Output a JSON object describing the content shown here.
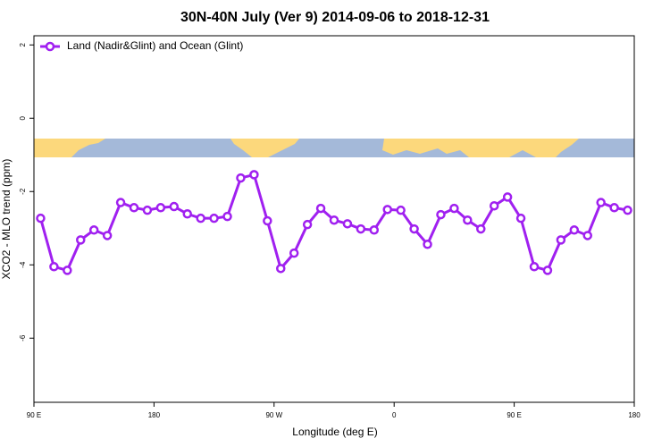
{
  "chart_data": {
    "type": "line",
    "title": "30N-40N July (Ver 9)   2014-09-06 to 2018-12-31",
    "x_label": "Longitude (deg E)",
    "y_label": "XCO2 - MLO trend (ppm)",
    "x": [
      95,
      105,
      115,
      125,
      135,
      145,
      155,
      165,
      175,
      185,
      195,
      205,
      215,
      225,
      235,
      245,
      255,
      265,
      275,
      285,
      295,
      305,
      315,
      325,
      335,
      345,
      355,
      365,
      375,
      385,
      395,
      405,
      415,
      425,
      435,
      445,
      455,
      465,
      475,
      485,
      495,
      505,
      515,
      525,
      535
    ],
    "series": [
      {
        "name": "Land (Nadir&Glint) and Ocean (Glint)",
        "color": "#a020f0",
        "values": [
          -2.73,
          -4.05,
          -4.15,
          -3.32,
          -3.05,
          -3.2,
          -2.3,
          -2.44,
          -2.51,
          -2.44,
          -2.41,
          -2.61,
          -2.73,
          -2.73,
          -2.68,
          -1.63,
          -1.54,
          -2.8,
          -4.1,
          -3.68,
          -2.9,
          -2.46,
          -2.78,
          -2.88,
          -3.02,
          -3.05,
          -2.49,
          -2.51,
          -3.02,
          -3.44,
          -2.63,
          -2.46,
          -2.78,
          -3.02,
          -2.39,
          -2.15,
          -2.73,
          -4.05,
          -4.15,
          -3.32,
          -3.05,
          -3.2,
          -2.3,
          -2.44,
          -2.51
        ]
      }
    ],
    "xlim": [
      90,
      540
    ],
    "xticks": [
      {
        "value": 90,
        "label": "90 E"
      },
      180,
      {
        "value": 270,
        "label": "90 W"
      },
      {
        "value": 360,
        "label": "0"
      },
      {
        "value": 450,
        "label": "90 E"
      },
      {
        "value": 540,
        "label": "180"
      }
    ],
    "ylim": [
      -7.75,
      2.25
    ],
    "yticks": [
      -6,
      -4,
      -2,
      0,
      2
    ],
    "legend": "top-left"
  }
}
